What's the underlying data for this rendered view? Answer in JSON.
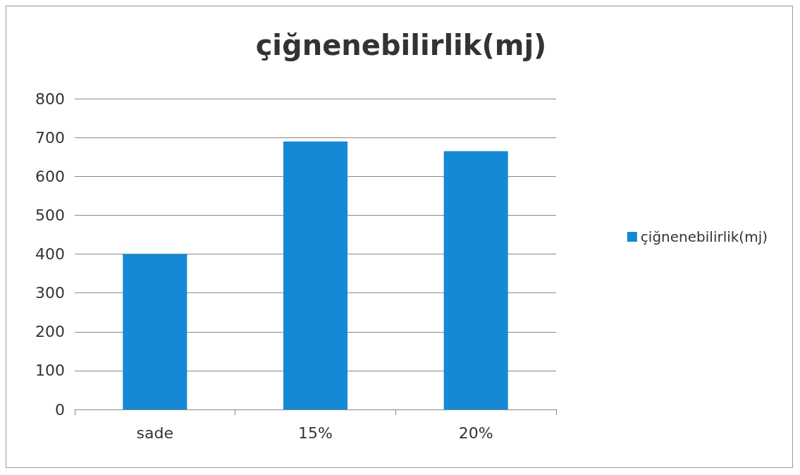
{
  "chart_data": {
    "type": "bar",
    "title": "çiğnenebilirlik(mj)",
    "categories": [
      "sade",
      "15%",
      "20%"
    ],
    "series": [
      {
        "name": "çiğnenebilirlik(mj)",
        "color": "#1589d6",
        "values": [
          400,
          690,
          665
        ]
      }
    ],
    "ylim": [
      0,
      800
    ],
    "yticks": [
      0,
      100,
      200,
      300,
      400,
      500,
      600,
      700,
      800
    ],
    "grid": "y",
    "legend": "right"
  }
}
